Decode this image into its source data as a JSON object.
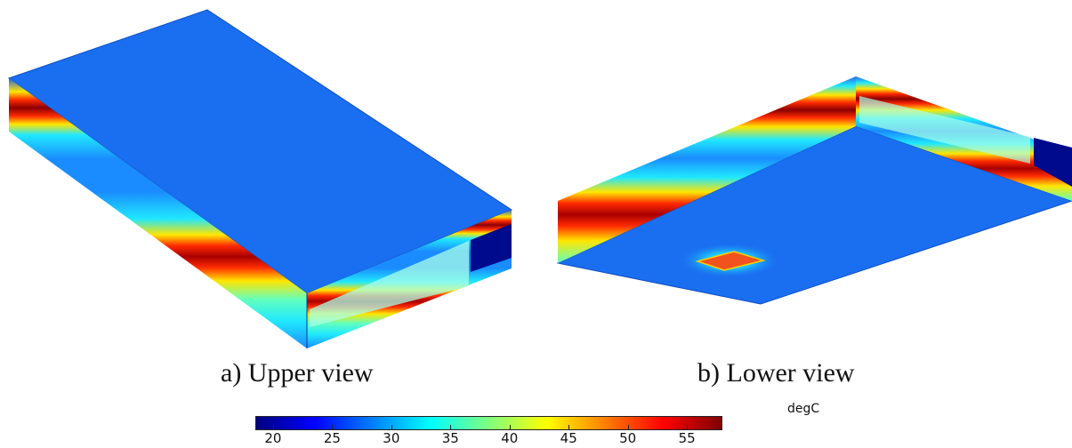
{
  "captions": {
    "upper": "a) Upper view",
    "lower": "b) Lower view"
  },
  "colorbar": {
    "unit": "degC",
    "min": 18.5,
    "max": 58,
    "ticks": [
      "20",
      "25",
      "30",
      "35",
      "40",
      "45",
      "50",
      "55"
    ],
    "colormap": [
      "#00007f",
      "#0000ff",
      "#007fff",
      "#00ffff",
      "#7fff7f",
      "#ffff00",
      "#ff7f00",
      "#ff0000",
      "#7f0000"
    ]
  },
  "colors": {
    "surface": "#1a6ef0",
    "surface_dark": "#1560dc",
    "cold": "#000a8c",
    "warm_pad": "#f2521d",
    "hot": "#a80000",
    "red": "#ff1a00",
    "yellow": "#ffe600",
    "cyan": "#20e8ff",
    "light_cyan": "#a8ffe8"
  }
}
